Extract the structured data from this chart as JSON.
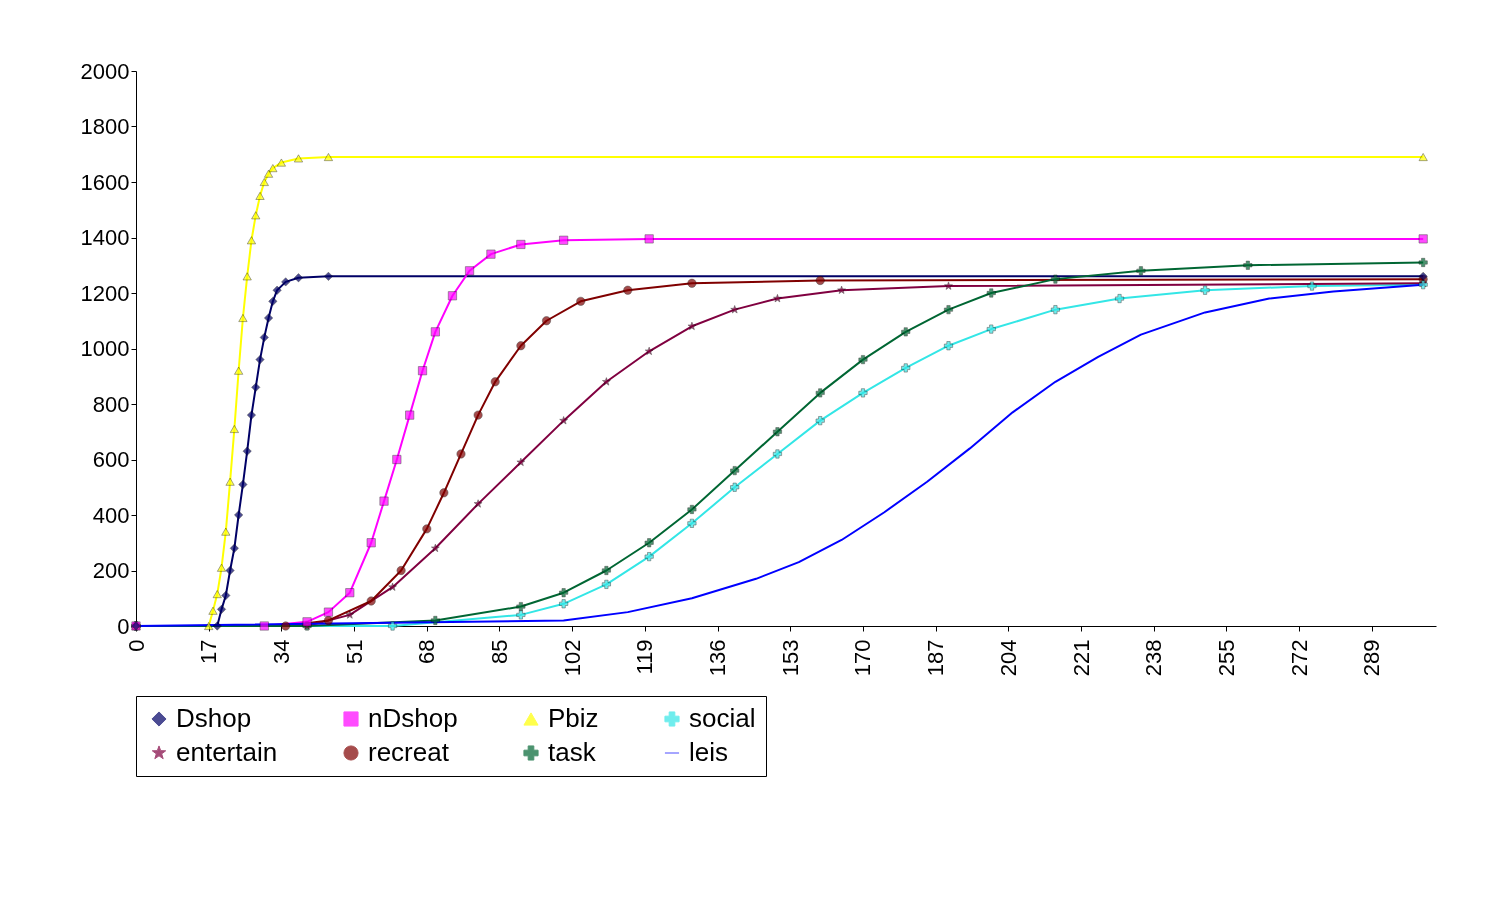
{
  "chart_data": {
    "type": "line",
    "xlim": [
      0,
      304
    ],
    "xticks": [
      0,
      17,
      34,
      51,
      68,
      85,
      102,
      119,
      136,
      153,
      170,
      187,
      204,
      221,
      238,
      255,
      272,
      289
    ],
    "ylim": [
      0,
      2000
    ],
    "yticks": [
      0,
      200,
      400,
      600,
      800,
      1000,
      1200,
      1400,
      1600,
      1800,
      2000
    ],
    "grid": false,
    "legend": "bottom",
    "series": [
      {
        "name": "Dshop",
        "color": "#000066",
        "marker": "diamond",
        "x": [
          0,
          19,
          20,
          21,
          22,
          23,
          24,
          25,
          26,
          27,
          28,
          29,
          30,
          31,
          32,
          33,
          35,
          38,
          45,
          301
        ],
        "values": [
          0,
          0,
          60,
          110,
          200,
          280,
          400,
          510,
          630,
          760,
          860,
          960,
          1040,
          1110,
          1170,
          1210,
          1240,
          1255,
          1260,
          1260
        ]
      },
      {
        "name": "nDshop",
        "color": "#ff00ff",
        "marker": "square",
        "x": [
          0,
          30,
          40,
          45,
          50,
          55,
          58,
          61,
          64,
          67,
          70,
          74,
          78,
          83,
          90,
          100,
          120,
          301
        ],
        "values": [
          0,
          0,
          15,
          50,
          120,
          300,
          450,
          600,
          760,
          920,
          1060,
          1190,
          1280,
          1340,
          1375,
          1390,
          1395,
          1395
        ]
      },
      {
        "name": "Pbiz",
        "color": "#ffff00",
        "marker": "triangle",
        "x": [
          0,
          17,
          18,
          19,
          20,
          21,
          22,
          23,
          24,
          25,
          26,
          27,
          28,
          29,
          30,
          31,
          32,
          34,
          38,
          45,
          301
        ],
        "values": [
          0,
          0,
          55,
          115,
          210,
          340,
          520,
          710,
          920,
          1110,
          1260,
          1390,
          1480,
          1550,
          1600,
          1630,
          1650,
          1670,
          1685,
          1690,
          1690
        ]
      },
      {
        "name": "social",
        "color": "#33e6e6",
        "marker": "cross",
        "x": [
          0,
          60,
          90,
          100,
          110,
          120,
          130,
          140,
          150,
          160,
          170,
          180,
          190,
          200,
          215,
          230,
          250,
          275,
          301
        ],
        "values": [
          0,
          0,
          40,
          80,
          150,
          250,
          370,
          500,
          620,
          740,
          840,
          930,
          1010,
          1070,
          1140,
          1180,
          1210,
          1225,
          1230
        ]
      },
      {
        "name": "entertain",
        "color": "#800040",
        "marker": "star",
        "x": [
          0,
          40,
          50,
          60,
          70,
          80,
          90,
          100,
          110,
          120,
          130,
          140,
          150,
          165,
          190,
          301
        ],
        "values": [
          0,
          0,
          40,
          140,
          280,
          440,
          590,
          740,
          880,
          990,
          1080,
          1140,
          1180,
          1210,
          1225,
          1235
        ]
      },
      {
        "name": "recreat",
        "color": "#800000",
        "marker": "circle",
        "x": [
          0,
          35,
          45,
          55,
          62,
          68,
          72,
          76,
          80,
          84,
          90,
          96,
          104,
          115,
          130,
          160,
          301
        ],
        "values": [
          0,
          0,
          20,
          90,
          200,
          350,
          480,
          620,
          760,
          880,
          1010,
          1100,
          1170,
          1210,
          1235,
          1245,
          1250
        ]
      },
      {
        "name": "task",
        "color": "#006633",
        "marker": "cross",
        "x": [
          0,
          40,
          70,
          90,
          100,
          110,
          120,
          130,
          140,
          150,
          160,
          170,
          180,
          190,
          200,
          215,
          235,
          260,
          301
        ],
        "values": [
          0,
          0,
          20,
          70,
          120,
          200,
          300,
          420,
          560,
          700,
          840,
          960,
          1060,
          1140,
          1200,
          1250,
          1280,
          1300,
          1310
        ]
      },
      {
        "name": "leis",
        "color": "#0000ff",
        "marker": "none",
        "x": [
          0,
          100,
          115,
          130,
          145,
          155,
          165,
          175,
          185,
          195,
          205,
          215,
          225,
          235,
          250,
          265,
          280,
          301
        ],
        "values": [
          0,
          20,
          50,
          100,
          170,
          230,
          310,
          410,
          520,
          640,
          770,
          880,
          970,
          1050,
          1130,
          1180,
          1205,
          1230
        ]
      }
    ]
  }
}
